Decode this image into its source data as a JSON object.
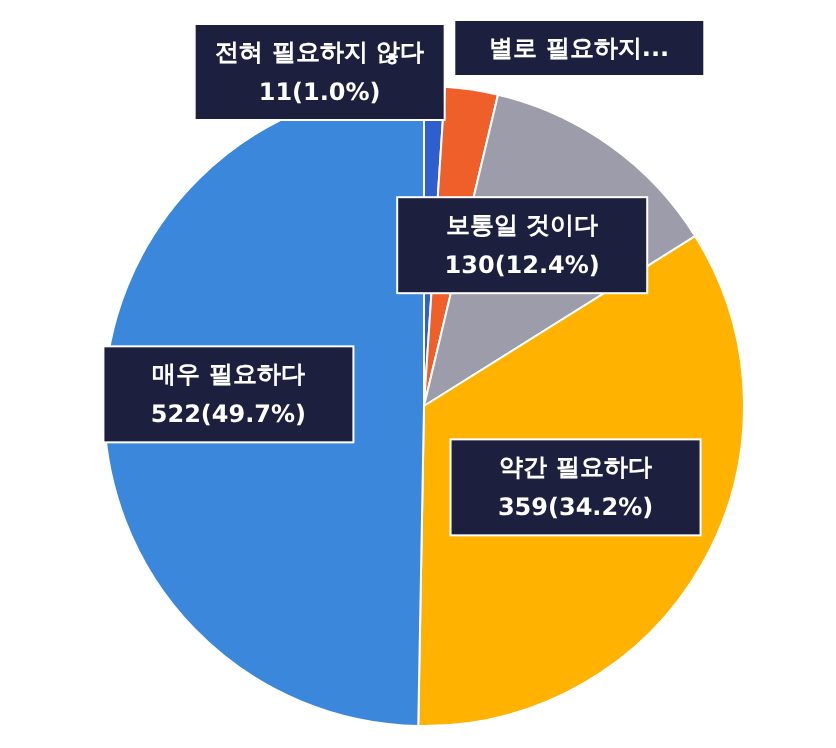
{
  "chart_data": {
    "type": "pie",
    "categories": [
      "전혀 필요하지 않다",
      "별로 필요하지...",
      "보통일 것이다",
      "약간 필요하다",
      "매우 필요하다"
    ],
    "values": [
      11,
      28,
      130,
      359,
      522
    ],
    "colors": [
      "#2e5fcc",
      "#ef5f2a",
      "#9c9cab",
      "#ffb300",
      "#3a87dc"
    ],
    "value_labels": [
      "11(1.0%)",
      null,
      "130(12.4%)",
      "359(34.2%)",
      "522(49.7%)"
    ]
  }
}
